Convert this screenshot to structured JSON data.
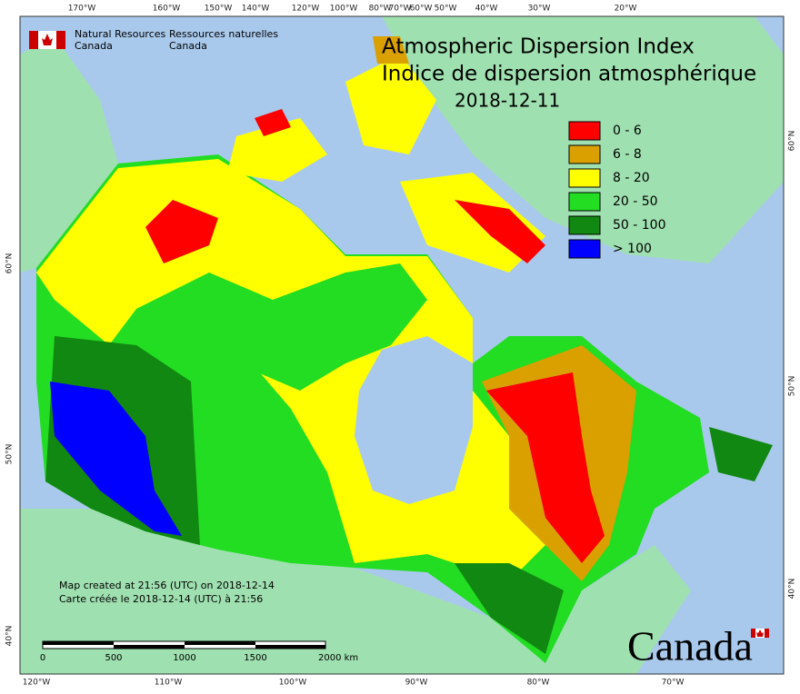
{
  "header": {
    "agency_en": [
      "Natural Resources",
      "Canada"
    ],
    "agency_fr": [
      "Ressources naturelles",
      "Canada"
    ]
  },
  "title": [
    "Atmospheric Dispersion Index",
    "Indice de dispersion atmosphérique"
  ],
  "date": "2018-12-11",
  "legend": [
    {
      "label": "0 - 6",
      "color": "#ff0000"
    },
    {
      "label": "6 - 8",
      "color": "#d9a000"
    },
    {
      "label": "8 - 20",
      "color": "#ffff00"
    },
    {
      "label": "20 - 50",
      "color": "#22dd22"
    },
    {
      "label": "50 - 100",
      "color": "#118811"
    },
    {
      "label": "> 100",
      "color": "#0000ff"
    }
  ],
  "top_labels": [
    "170°W",
    "160°W",
    "150°W",
    "140°W",
    "120°W",
    "100°W",
    "80°W",
    "70°W",
    "60°W",
    "50°W",
    "40°W",
    "30°W",
    "20°W"
  ],
  "bottom_labels": [
    "120°W",
    "110°W",
    "100°W",
    "90°W",
    "80°W",
    "70°W"
  ],
  "left_labels": [
    "60°N",
    "50°N",
    "40°N"
  ],
  "right_labels": [
    "60°N",
    "50°N",
    "40°N"
  ],
  "credits": [
    "Map created at 21:56 (UTC) on 2018-12-14",
    "Carte créée le 2018-12-14 (UTC) à 21:56"
  ],
  "scale_bar": [
    "0",
    "500",
    "1000",
    "1500",
    "2000 km"
  ],
  "wordmark": "Canada"
}
